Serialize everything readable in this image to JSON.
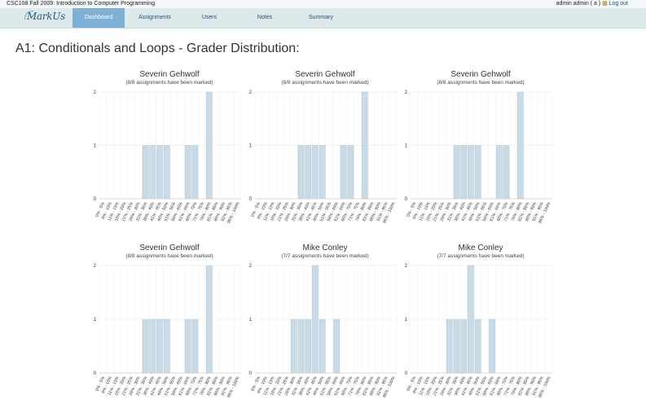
{
  "header": {
    "course": "CSC108 Fall 2009: Introduction to Computer Programming",
    "user": "admin admin ( a )",
    "logout": "Log out"
  },
  "nav": {
    "logo": "MarkUs",
    "tabs": [
      "Dashboard",
      "Assignments",
      "Users",
      "Notes",
      "Summary"
    ],
    "active_tab": "Dashboard"
  },
  "page_title": "A1: Conditionals and Loops - Grader Distribution:",
  "colors": {
    "bar": "#c9dbe6",
    "bar_edge": "#aec7d6",
    "active_tab": "#7fb0d5"
  },
  "chart_data": [
    {
      "type": "bar",
      "title": "Severin Gehwolf",
      "subtitle": "(8/8 assignments have been marked)",
      "categories": [
        "0% - 5%",
        "6% - 10%",
        "11% - 15%",
        "16% - 20%",
        "21% - 25%",
        "26% - 30%",
        "31% - 35%",
        "36% - 40%",
        "41% - 45%",
        "46% - 50%",
        "51% - 55%",
        "56% - 60%",
        "61% - 65%",
        "66% - 70%",
        "71% - 75%",
        "76% - 80%",
        "81% - 85%",
        "86% - 90%",
        "91% - 95%",
        "96% - 100%"
      ],
      "values": [
        0,
        0,
        0,
        0,
        0,
        0,
        1,
        1,
        1,
        1,
        0,
        0,
        1,
        1,
        0,
        2,
        0,
        0,
        0,
        0
      ],
      "ylim": [
        0,
        2
      ],
      "yticks": [
        0,
        1,
        2
      ]
    },
    {
      "type": "bar",
      "title": "Severin Gehwolf",
      "subtitle": "(8/8 assignments have been marked)",
      "categories": [
        "0% - 5%",
        "6% - 10%",
        "11% - 15%",
        "16% - 20%",
        "21% - 25%",
        "26% - 30%",
        "31% - 35%",
        "36% - 40%",
        "41% - 45%",
        "46% - 50%",
        "51% - 55%",
        "56% - 60%",
        "61% - 65%",
        "66% - 70%",
        "71% - 75%",
        "76% - 80%",
        "81% - 85%",
        "86% - 90%",
        "91% - 95%",
        "96% - 100%"
      ],
      "values": [
        0,
        0,
        0,
        0,
        0,
        0,
        1,
        1,
        1,
        1,
        0,
        0,
        1,
        1,
        0,
        2,
        0,
        0,
        0,
        0
      ],
      "ylim": [
        0,
        2
      ],
      "yticks": [
        0,
        1,
        2
      ]
    },
    {
      "type": "bar",
      "title": "Severin Gehwolf",
      "subtitle": "(8/8 assignments have been marked)",
      "categories": [
        "0% - 5%",
        "6% - 10%",
        "11% - 15%",
        "16% - 20%",
        "21% - 25%",
        "26% - 30%",
        "31% - 35%",
        "36% - 40%",
        "41% - 45%",
        "46% - 50%",
        "51% - 55%",
        "56% - 60%",
        "61% - 65%",
        "66% - 70%",
        "71% - 75%",
        "76% - 80%",
        "81% - 85%",
        "86% - 90%",
        "91% - 95%",
        "96% - 100%"
      ],
      "values": [
        0,
        0,
        0,
        0,
        0,
        0,
        1,
        1,
        1,
        1,
        0,
        0,
        1,
        1,
        0,
        2,
        0,
        0,
        0,
        0
      ],
      "ylim": [
        0,
        2
      ],
      "yticks": [
        0,
        1,
        2
      ]
    },
    {
      "type": "bar",
      "title": "Severin Gehwolf",
      "subtitle": "(8/8 assignments have been marked)",
      "categories": [
        "0% - 5%",
        "6% - 10%",
        "11% - 15%",
        "16% - 20%",
        "21% - 25%",
        "26% - 30%",
        "31% - 35%",
        "36% - 40%",
        "41% - 45%",
        "46% - 50%",
        "51% - 55%",
        "56% - 60%",
        "61% - 65%",
        "66% - 70%",
        "71% - 75%",
        "76% - 80%",
        "81% - 85%",
        "86% - 90%",
        "91% - 95%",
        "96% - 100%"
      ],
      "values": [
        0,
        0,
        0,
        0,
        0,
        0,
        1,
        1,
        1,
        1,
        0,
        0,
        1,
        1,
        0,
        2,
        0,
        0,
        0,
        0
      ],
      "ylim": [
        0,
        2
      ],
      "yticks": [
        0,
        1,
        2
      ]
    },
    {
      "type": "bar",
      "title": "Mike Conley",
      "subtitle": "(7/7 assignments have been marked)",
      "categories": [
        "0% - 5%",
        "6% - 10%",
        "11% - 15%",
        "16% - 20%",
        "21% - 25%",
        "26% - 30%",
        "31% - 35%",
        "36% - 40%",
        "41% - 45%",
        "46% - 50%",
        "51% - 55%",
        "56% - 60%",
        "61% - 65%",
        "66% - 70%",
        "71% - 75%",
        "76% - 80%",
        "81% - 85%",
        "86% - 90%",
        "91% - 95%",
        "96% - 100%"
      ],
      "values": [
        0,
        0,
        0,
        0,
        0,
        1,
        1,
        1,
        2,
        1,
        0,
        1,
        0,
        0,
        0,
        0,
        0,
        0,
        0,
        0
      ],
      "ylim": [
        0,
        2
      ],
      "yticks": [
        0,
        1,
        2
      ]
    },
    {
      "type": "bar",
      "title": "Mike Conley",
      "subtitle": "(7/7 assignments have been marked)",
      "categories": [
        "0% - 5%",
        "6% - 10%",
        "11% - 15%",
        "16% - 20%",
        "21% - 25%",
        "26% - 30%",
        "31% - 35%",
        "36% - 40%",
        "41% - 45%",
        "46% - 50%",
        "51% - 55%",
        "56% - 60%",
        "61% - 65%",
        "66% - 70%",
        "71% - 75%",
        "76% - 80%",
        "81% - 85%",
        "86% - 90%",
        "91% - 95%",
        "96% - 100%"
      ],
      "values": [
        0,
        0,
        0,
        0,
        0,
        1,
        1,
        1,
        2,
        1,
        0,
        1,
        0,
        0,
        0,
        0,
        0,
        0,
        0,
        0
      ],
      "ylim": [
        0,
        2
      ],
      "yticks": [
        0,
        1,
        2
      ]
    }
  ]
}
